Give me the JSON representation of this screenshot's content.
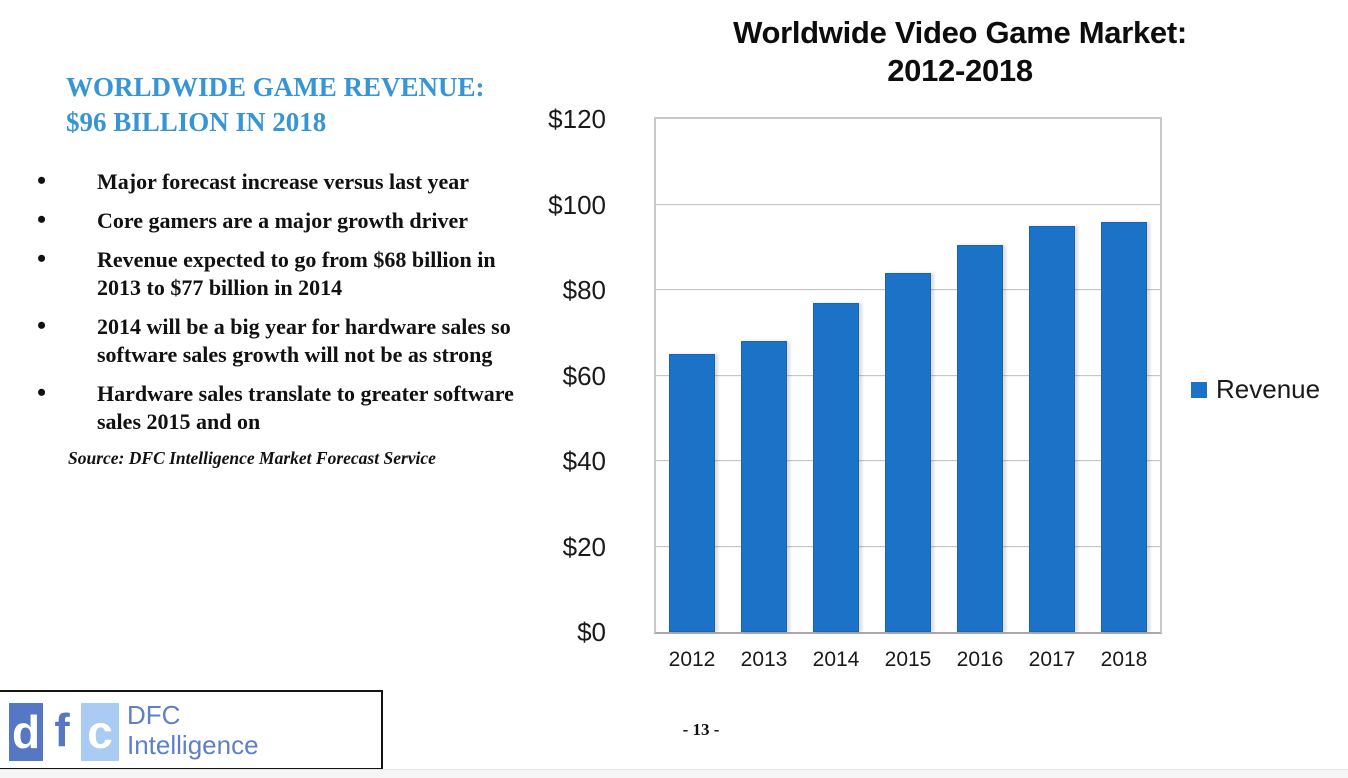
{
  "left_panel": {
    "heading_lines": [
      "WORLDWIDE GAME REVENUE:",
      "$96 BILLION IN 2018"
    ],
    "bullets": [
      "Major forecast increase versus last year",
      "Core gamers are a major growth driver",
      "Revenue expected to go from $68 billion in 2013 to $77 billion in 2014",
      "2014 will be a big year for hardware sales so software sales growth will not be as strong",
      "Hardware sales translate to greater software sales 2015 and on"
    ],
    "source": "Source: DFC Intelligence Market Forecast Service"
  },
  "chart_data": {
    "type": "bar",
    "title": "Worldwide Video Game Market: 2012-2018",
    "title_lines": [
      "Worldwide Video Game Market:",
      "2012-2018"
    ],
    "categories": [
      "2012",
      "2013",
      "2014",
      "2015",
      "2016",
      "2017",
      "2018"
    ],
    "series": [
      {
        "name": "Revenue",
        "values": [
          65,
          68,
          77,
          84,
          90.5,
          95,
          96
        ]
      }
    ],
    "xlabel": "",
    "ylabel": "",
    "ylim": [
      0,
      120
    ],
    "yticks": [
      0,
      20,
      40,
      60,
      80,
      100,
      120
    ],
    "ytick_labels": [
      "$0",
      "$20",
      "$40",
      "$60",
      "$80",
      "$100",
      "$120"
    ],
    "grid": true,
    "legend_position": "right",
    "bar_color": "#1B72C6"
  },
  "footer": {
    "page_number": "- 13 -"
  },
  "logo": {
    "tile_letters": [
      "d",
      "f",
      "c"
    ],
    "name_line1": "DFC",
    "name_line2": "Intelligence"
  },
  "colors": {
    "heading_blue": "#3795D5",
    "bar_blue": "#1B72C6",
    "logo_blue": "#5F80C8",
    "logo_tile_dark": "#5577C4",
    "logo_tile_light": "#A9CBF4"
  }
}
